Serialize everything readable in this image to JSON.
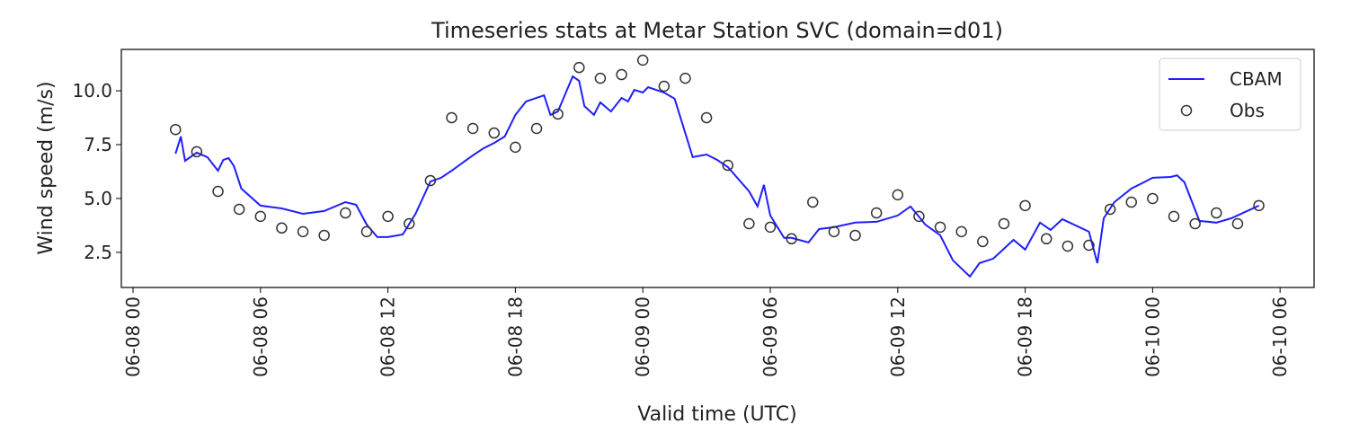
{
  "chart_data": {
    "type": "line",
    "title": "Timeseries stats at Metar Station SVC (domain=d01)",
    "x_label": "Valid time (UTC)",
    "y_label": "Wind speed (m/s)",
    "xlim": [
      -0.55,
      55.6
    ],
    "xticks": [
      {
        "value": 0,
        "label": "06-08 00"
      },
      {
        "value": 6,
        "label": "06-08 06"
      },
      {
        "value": 12,
        "label": "06-08 12"
      },
      {
        "value": 18,
        "label": "06-08 18"
      },
      {
        "value": 24,
        "label": "06-09 00"
      },
      {
        "value": 30,
        "label": "06-09 06"
      },
      {
        "value": 36,
        "label": "06-09 12"
      },
      {
        "value": 42,
        "label": "06-09 18"
      },
      {
        "value": 48,
        "label": "06-10 00"
      },
      {
        "value": 54,
        "label": "06-10 06"
      }
    ],
    "ylim": [
      0.87,
      11.92
    ],
    "yticks": [
      2.5,
      {
        "value": 5,
        "label": "5.0"
      },
      7.5,
      {
        "value": 10,
        "label": "10.0"
      }
    ],
    "legend": "upper right",
    "series": [
      {
        "name": "CBAM",
        "type": "line",
        "color": "#1f1fff",
        "x": [
          2,
          2.25,
          2.45,
          3,
          3.5,
          4,
          4.25,
          4.5,
          4.75,
          5.1,
          6,
          7,
          8,
          9,
          10,
          10.5,
          11,
          11.5,
          12,
          12.7,
          13.3,
          14,
          14.5,
          15,
          16,
          16.5,
          17,
          17.5,
          18,
          18.5,
          19.35,
          19.65,
          20,
          20.7,
          21,
          21.25,
          21.7,
          22,
          22.5,
          23,
          23.3,
          23.6,
          24,
          24.25,
          25,
          25.5,
          26.35,
          27,
          27.5,
          28,
          29,
          29.4,
          29.7,
          30,
          30.65,
          31,
          31.8,
          32.3,
          33,
          34,
          35,
          36,
          36.6,
          37.3,
          38,
          38.6,
          39.4,
          39.85,
          40.5,
          41.45,
          42,
          42.7,
          43.2,
          43.75,
          45,
          45.4,
          45.7,
          46.2,
          47,
          48,
          48.85,
          49.15,
          49.5,
          50.2,
          51,
          51.7,
          53
        ],
        "values": [
          7.08,
          7.88,
          6.75,
          7.13,
          6.92,
          6.29,
          6.79,
          6.88,
          6.5,
          5.46,
          4.67,
          4.54,
          4.29,
          4.42,
          4.83,
          4.71,
          3.79,
          3.21,
          3.21,
          3.33,
          4.29,
          5.79,
          5.96,
          6.29,
          7.0,
          7.33,
          7.58,
          7.88,
          8.88,
          9.5,
          9.79,
          8.88,
          9.04,
          10.67,
          10.46,
          9.29,
          8.88,
          9.46,
          9.04,
          9.67,
          9.5,
          10.04,
          9.92,
          10.17,
          9.92,
          9.63,
          6.92,
          7.04,
          6.79,
          6.46,
          5.33,
          4.63,
          5.63,
          4.21,
          3.17,
          3.17,
          2.96,
          3.58,
          3.67,
          3.88,
          3.92,
          4.21,
          4.63,
          3.79,
          3.29,
          2.13,
          1.38,
          2.0,
          2.21,
          3.08,
          2.63,
          3.88,
          3.54,
          4.04,
          3.46,
          2.0,
          4.08,
          4.83,
          5.46,
          5.96,
          6.0,
          6.08,
          5.75,
          3.96,
          3.88,
          4.08,
          4.67
        ]
      },
      {
        "name": "Obs",
        "type": "scatter",
        "color": "#333333",
        "x": [
          2,
          3,
          4,
          5,
          6,
          7,
          8,
          9,
          10,
          11,
          12,
          13,
          14,
          15,
          16,
          17,
          18,
          19,
          20,
          21,
          22,
          23,
          24,
          25,
          26,
          27,
          28,
          29,
          30,
          31,
          32,
          33,
          34,
          35,
          36,
          37,
          38,
          39,
          40,
          41,
          42,
          43,
          44,
          45,
          46,
          47,
          48,
          49,
          50,
          51,
          52,
          53
        ],
        "values": [
          8.2,
          7.17,
          5.33,
          4.5,
          4.17,
          3.63,
          3.46,
          3.29,
          4.33,
          3.46,
          4.17,
          3.83,
          5.83,
          8.75,
          8.25,
          8.04,
          7.38,
          8.25,
          8.92,
          11.08,
          10.58,
          10.75,
          11.42,
          10.21,
          10.58,
          8.75,
          6.54,
          3.83,
          3.67,
          3.13,
          4.83,
          3.46,
          3.29,
          4.33,
          5.17,
          4.17,
          3.67,
          3.46,
          3.0,
          3.83,
          4.67,
          3.13,
          2.79,
          2.83,
          4.5,
          4.83,
          5.0,
          4.17,
          3.83,
          4.33,
          3.83,
          4.67
        ]
      }
    ]
  }
}
